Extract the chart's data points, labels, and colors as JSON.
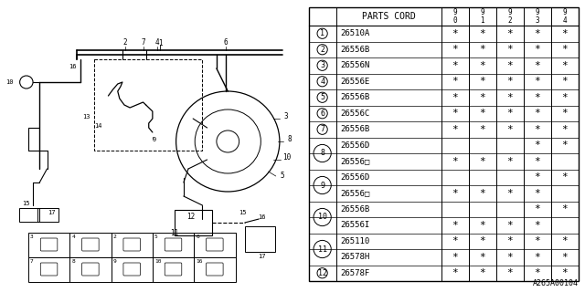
{
  "part_code_header": "PARTS CORD",
  "year_cols": [
    "9\n0",
    "9\n1",
    "9\n2",
    "9\n3",
    "9\n4"
  ],
  "display_rows": [
    {
      "code": "26510A",
      "stars": [
        1,
        1,
        1,
        1,
        1
      ],
      "circle_num": 1,
      "sub": false
    },
    {
      "code": "26556B",
      "stars": [
        1,
        1,
        1,
        1,
        1
      ],
      "circle_num": 2,
      "sub": false
    },
    {
      "code": "26556N",
      "stars": [
        1,
        1,
        1,
        1,
        1
      ],
      "circle_num": 3,
      "sub": false
    },
    {
      "code": "26556E",
      "stars": [
        1,
        1,
        1,
        1,
        1
      ],
      "circle_num": 4,
      "sub": false
    },
    {
      "code": "26556B",
      "stars": [
        1,
        1,
        1,
        1,
        1
      ],
      "circle_num": 5,
      "sub": false
    },
    {
      "code": "26556C",
      "stars": [
        1,
        1,
        1,
        1,
        1
      ],
      "circle_num": 6,
      "sub": false
    },
    {
      "code": "26556B",
      "stars": [
        1,
        1,
        1,
        1,
        1
      ],
      "circle_num": 7,
      "sub": false
    },
    {
      "code": "26556D",
      "stars": [
        0,
        0,
        0,
        1,
        1
      ],
      "circle_num": 8,
      "sub": false
    },
    {
      "code": "26556□",
      "stars": [
        1,
        1,
        1,
        1,
        0
      ],
      "circle_num": null,
      "sub": true
    },
    {
      "code": "26556D",
      "stars": [
        0,
        0,
        0,
        1,
        1
      ],
      "circle_num": 9,
      "sub": false
    },
    {
      "code": "26556□",
      "stars": [
        1,
        1,
        1,
        1,
        0
      ],
      "circle_num": null,
      "sub": true
    },
    {
      "code": "26556B",
      "stars": [
        0,
        0,
        0,
        1,
        1
      ],
      "circle_num": 10,
      "sub": false
    },
    {
      "code": "26556I",
      "stars": [
        1,
        1,
        1,
        1,
        0
      ],
      "circle_num": null,
      "sub": true
    },
    {
      "code": "265110",
      "stars": [
        1,
        1,
        1,
        1,
        1
      ],
      "circle_num": 11,
      "sub": false
    },
    {
      "code": "26578H",
      "stars": [
        1,
        1,
        1,
        1,
        1
      ],
      "circle_num": null,
      "sub": true
    },
    {
      "code": "26578F",
      "stars": [
        1,
        1,
        1,
        1,
        1
      ],
      "circle_num": 12,
      "sub": false
    }
  ],
  "footnote": "A265A00104",
  "bg_color": "#ffffff",
  "line_color": "#000000",
  "text_color": "#000000"
}
